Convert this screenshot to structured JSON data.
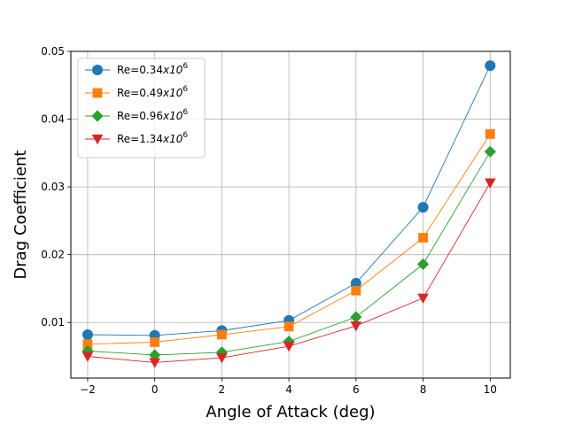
{
  "chart_data": {
    "type": "line",
    "xlabel": "Angle of Attack (deg)",
    "ylabel": "Drag Coefficient",
    "xlim": [
      -2.5,
      10.6
    ],
    "ylim": [
      0.0018,
      0.05
    ],
    "x_ticks": [
      -2,
      0,
      2,
      4,
      6,
      8,
      10
    ],
    "x_tick_labels": [
      "−2",
      "0",
      "2",
      "4",
      "6",
      "8",
      "10"
    ],
    "y_ticks": [
      0.01,
      0.02,
      0.03,
      0.04,
      0.05
    ],
    "y_tick_labels": [
      "0.01",
      "0.02",
      "0.03",
      "0.04",
      "0.05"
    ],
    "grid": true,
    "legend_position": "top-left",
    "x": [
      -2,
      0,
      2,
      4,
      6,
      8,
      10
    ],
    "series": [
      {
        "label_base": "Re=0.34",
        "label_mult": "x10",
        "label_exp": "6",
        "color": "#1f77b4",
        "marker": "circle",
        "values": [
          0.0082,
          0.0081,
          0.0088,
          0.0103,
          0.0158,
          0.027,
          0.0479
        ]
      },
      {
        "label_base": "Re=0.49",
        "label_mult": "x10",
        "label_exp": "6",
        "color": "#ff7f0e",
        "marker": "square",
        "values": [
          0.0068,
          0.0071,
          0.0082,
          0.0094,
          0.0147,
          0.0225,
          0.0378
        ]
      },
      {
        "label_base": "Re=0.96",
        "label_mult": "x10",
        "label_exp": "6",
        "color": "#2ca02c",
        "marker": "diamond",
        "values": [
          0.0058,
          0.0052,
          0.0056,
          0.0072,
          0.0108,
          0.0186,
          0.0352
        ]
      },
      {
        "label_base": "Re=1.34",
        "label_mult": "x10",
        "label_exp": "6",
        "color": "#d62728",
        "marker": "triangle-down",
        "values": [
          0.005,
          0.0041,
          0.0048,
          0.0065,
          0.0095,
          0.0136,
          0.0306
        ]
      }
    ]
  }
}
